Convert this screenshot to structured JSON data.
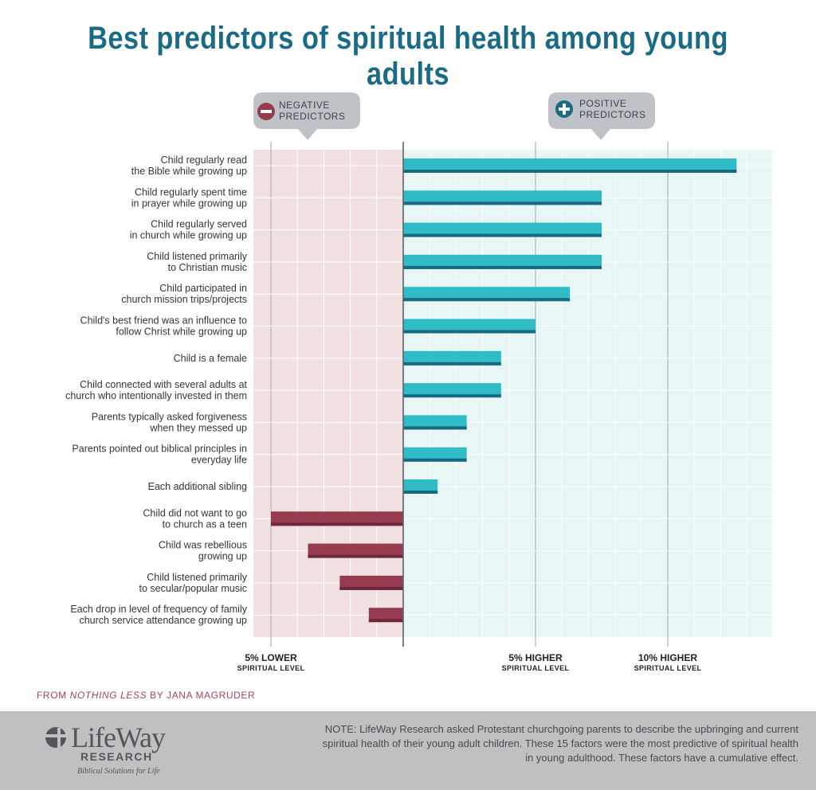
{
  "title": "Best predictors of spiritual health among young adults",
  "callouts": {
    "negative": [
      "NEGATIVE",
      "PREDICTORS"
    ],
    "positive": [
      "POSITIVE",
      "PREDICTORS"
    ]
  },
  "colors": {
    "title": "#1a6b86",
    "positive_bar": "#2fbcc6",
    "positive_bar_shadow": "#176a7f",
    "negative_bar": "#973c4f",
    "negative_bar_shadow": "#6f2838",
    "negative_bg": "#f1e0e0",
    "positive_bg": "#e8f6f6",
    "callout_bg": "#bfc3c8"
  },
  "chart_data": {
    "type": "bar",
    "orientation": "horizontal",
    "title": "Best predictors of spiritual health among young adults",
    "units": "percent change in spiritual level",
    "xlim": [
      -5,
      14
    ],
    "x_ticks": [
      {
        "value": -5,
        "line1": "5% LOWER",
        "line2": "SPIRITUAL LEVEL"
      },
      {
        "value": 5,
        "line1": "5% HIGHER",
        "line2": "SPIRITUAL LEVEL"
      },
      {
        "value": 10,
        "line1": "10% HIGHER",
        "line2": "SPIRITUAL LEVEL"
      }
    ],
    "grid": true,
    "categories": [
      [
        "Child regularly read",
        "the Bible while growing up"
      ],
      [
        "Child regularly spent time",
        "in prayer while growing up"
      ],
      [
        "Child regularly served",
        "in church while growing up"
      ],
      [
        "Child listened primarily",
        "to Christian music"
      ],
      [
        "Child participated in",
        "church mission trips/projects"
      ],
      [
        "Child's best friend was an influence to",
        "follow Christ while growing up"
      ],
      [
        "Child is a female"
      ],
      [
        "Child connected with several adults at",
        "church who intentionally invested in them"
      ],
      [
        "Parents typically asked forgiveness",
        "when they messed up"
      ],
      [
        "Parents pointed out biblical principles in",
        "everyday life"
      ],
      [
        "Each additional sibling"
      ],
      [
        "Child did not want to go",
        "to church as a teen"
      ],
      [
        "Child was rebellious",
        "growing up"
      ],
      [
        "Child listened primarily",
        "to secular/popular music"
      ],
      [
        "Each drop in level of frequency of family",
        "church service attendance growing up"
      ]
    ],
    "values": [
      12.6,
      7.5,
      7.5,
      7.5,
      6.3,
      5.0,
      3.7,
      3.7,
      2.4,
      2.4,
      1.3,
      -5.0,
      -3.6,
      -2.4,
      -1.3
    ]
  },
  "source": {
    "prefix": "FROM ",
    "book": "NOTHING LESS",
    "suffix": " BY JANA MAGRUDER"
  },
  "logo": {
    "word": "LifeWay",
    "research": "RESEARCH",
    "tagline": "Biblical Solutions for Life"
  },
  "note": "NOTE: LifeWay Research asked Protestant churchgoing parents to describe the upbringing and current spiritual health of their young adult children. These 15 factors were the most predictive of spiritual health in young adulthood. These factors have a cumulative effect."
}
